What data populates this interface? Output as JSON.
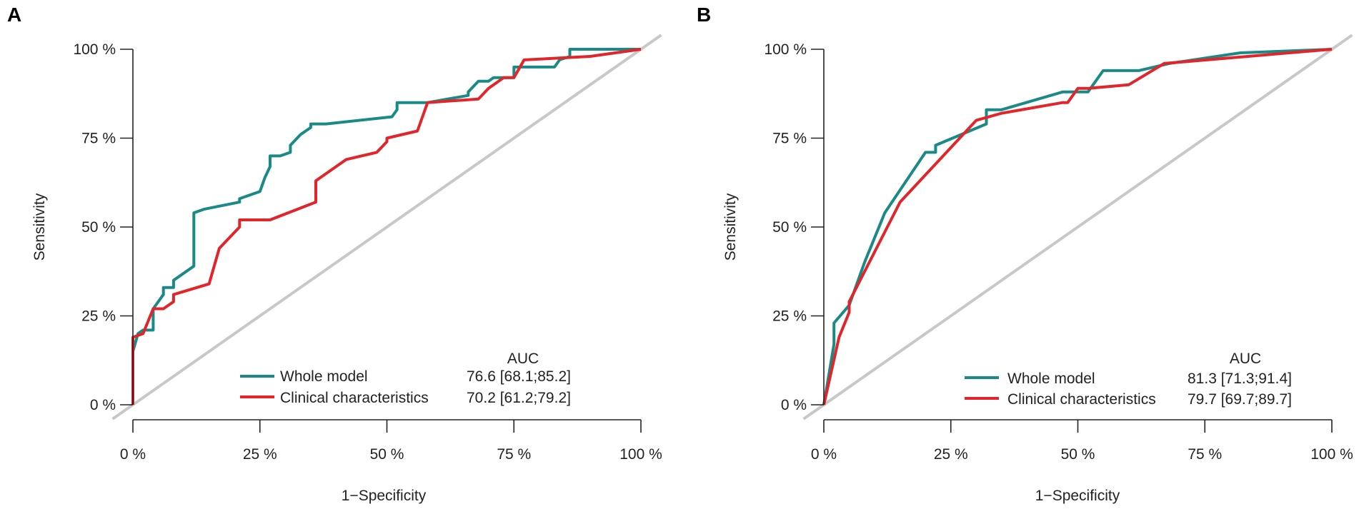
{
  "chart_data": [
    {
      "type": "line",
      "panel_label": "A",
      "xlabel": "1−Specificity",
      "ylabel": "Sensitivity",
      "xlim": [
        0,
        100
      ],
      "ylim": [
        0,
        100
      ],
      "xticks": [
        "0 %",
        "25 %",
        "50 %",
        "75 %",
        "100 %"
      ],
      "yticks": [
        "0 %",
        "25 %",
        "50 %",
        "75 %",
        "100 %"
      ],
      "diagonal": {
        "color": "#c8c8c8"
      },
      "auc_header": "AUC",
      "series": [
        {
          "name": "Whole model",
          "color": "#1a8a87",
          "auc": "76.6 [68.1;85.2]",
          "points": [
            [
              0,
              0
            ],
            [
              0,
              15
            ],
            [
              1,
              20
            ],
            [
              2,
              21
            ],
            [
              4,
              21
            ],
            [
              4,
              27
            ],
            [
              6,
              31
            ],
            [
              6,
              33
            ],
            [
              8,
              33
            ],
            [
              8,
              35
            ],
            [
              12,
              39
            ],
            [
              12,
              54
            ],
            [
              14,
              55
            ],
            [
              21,
              57
            ],
            [
              21,
              58
            ],
            [
              25,
              60
            ],
            [
              26,
              64
            ],
            [
              27,
              67
            ],
            [
              27,
              70
            ],
            [
              29,
              70
            ],
            [
              31,
              71
            ],
            [
              31,
              73
            ],
            [
              33,
              76
            ],
            [
              35,
              78
            ],
            [
              35,
              79
            ],
            [
              38,
              79
            ],
            [
              51,
              81
            ],
            [
              52,
              83
            ],
            [
              52,
              85
            ],
            [
              58,
              85
            ],
            [
              66,
              87
            ],
            [
              66,
              88
            ],
            [
              68,
              91
            ],
            [
              70,
              91
            ],
            [
              71,
              92
            ],
            [
              75,
              92
            ],
            [
              75,
              95
            ],
            [
              83,
              95
            ],
            [
              84,
              97
            ],
            [
              86,
              98
            ],
            [
              86,
              100
            ],
            [
              100,
              100
            ]
          ]
        },
        {
          "name": "Clinical characteristics",
          "color": "#e0262b",
          "auc": "70.2 [61.2;79.2]",
          "points": [
            [
              0,
              0
            ],
            [
              0,
              19
            ],
            [
              2,
              20
            ],
            [
              4,
              27
            ],
            [
              6,
              27
            ],
            [
              8,
              29
            ],
            [
              8,
              31
            ],
            [
              15,
              34
            ],
            [
              17,
              44
            ],
            [
              21,
              50
            ],
            [
              21,
              52
            ],
            [
              23,
              52
            ],
            [
              27,
              52
            ],
            [
              36,
              57
            ],
            [
              36,
              63
            ],
            [
              42,
              69
            ],
            [
              48,
              71
            ],
            [
              50,
              74
            ],
            [
              50,
              75
            ],
            [
              56,
              77
            ],
            [
              58,
              85
            ],
            [
              68,
              86
            ],
            [
              70,
              89
            ],
            [
              73,
              92
            ],
            [
              75,
              92
            ],
            [
              77,
              97
            ],
            [
              90,
              98
            ],
            [
              95,
              99
            ],
            [
              100,
              100
            ]
          ]
        }
      ]
    },
    {
      "type": "line",
      "panel_label": "B",
      "xlabel": "1−Specificity",
      "ylabel": "Sensitivity",
      "xlim": [
        0,
        100
      ],
      "ylim": [
        0,
        100
      ],
      "xticks": [
        "0 %",
        "25 %",
        "50 %",
        "75 %",
        "100 %"
      ],
      "yticks": [
        "0 %",
        "25 %",
        "50 %",
        "75 %",
        "100 %"
      ],
      "diagonal": {
        "color": "#c8c8c8"
      },
      "auc_header": "AUC",
      "series": [
        {
          "name": "Whole model",
          "color": "#1a8a87",
          "auc": "81.3 [71.3;91.4]",
          "points": [
            [
              0,
              0
            ],
            [
              2,
              17
            ],
            [
              2,
              23
            ],
            [
              5,
              28
            ],
            [
              8,
              40
            ],
            [
              12,
              54
            ],
            [
              20,
              71
            ],
            [
              22,
              71
            ],
            [
              22,
              73
            ],
            [
              32,
              79
            ],
            [
              32,
              83
            ],
            [
              35,
              83
            ],
            [
              47,
              88
            ],
            [
              52,
              88
            ],
            [
              55,
              94
            ],
            [
              62,
              94
            ],
            [
              68,
              96
            ],
            [
              82,
              99
            ],
            [
              100,
              100
            ]
          ]
        },
        {
          "name": "Clinical characteristics",
          "color": "#e0262b",
          "auc": "79.7 [69.7;89.7]",
          "points": [
            [
              0,
              0
            ],
            [
              3,
              19
            ],
            [
              5,
              26
            ],
            [
              5,
              29
            ],
            [
              15,
              57
            ],
            [
              30,
              80
            ],
            [
              35,
              82
            ],
            [
              47,
              85
            ],
            [
              48,
              85
            ],
            [
              50,
              89
            ],
            [
              52,
              89
            ],
            [
              60,
              90
            ],
            [
              67,
              96
            ],
            [
              100,
              100
            ]
          ]
        }
      ]
    }
  ]
}
